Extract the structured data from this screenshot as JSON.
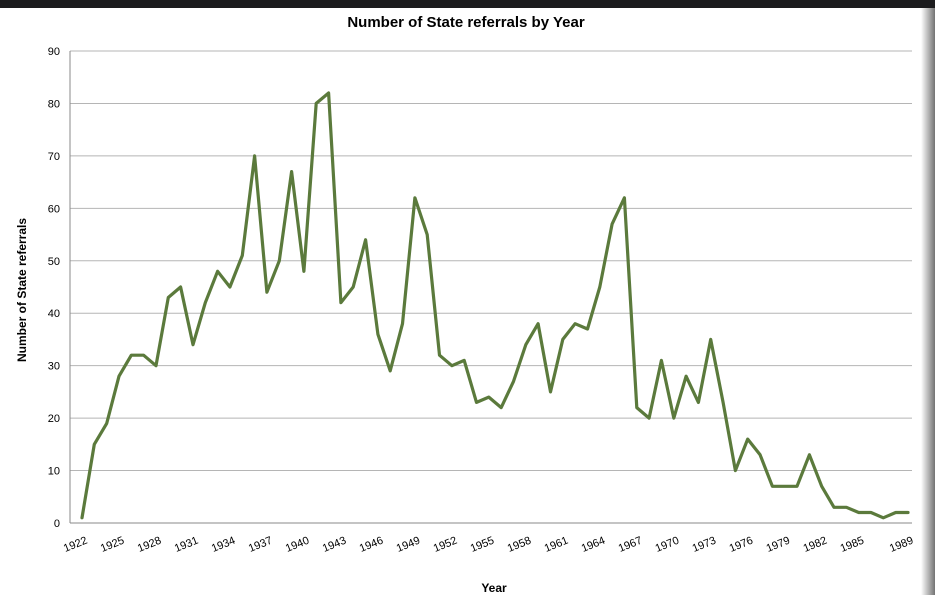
{
  "chart_data": {
    "type": "line",
    "title": "Number of State referrals by Year",
    "xlabel": "Year",
    "ylabel": "Number of State referrals",
    "ylim": [
      0,
      90
    ],
    "yticks": [
      0,
      10,
      20,
      30,
      40,
      50,
      60,
      70,
      80,
      90
    ],
    "xtick_labels": [
      "1922",
      "1925",
      "1928",
      "1931",
      "1934",
      "1937",
      "1940",
      "1943",
      "1946",
      "1949",
      "1952",
      "1955",
      "1958",
      "1961",
      "1964",
      "1967",
      "1970",
      "1973",
      "1976",
      "1979",
      "1982",
      "1985",
      "1989"
    ],
    "grid": true,
    "line_color": "#5b7a3c",
    "series": [
      {
        "x": [
          1922,
          1923,
          1924,
          1925,
          1926,
          1927,
          1928,
          1929,
          1930,
          1931,
          1932,
          1933,
          1934,
          1935,
          1936,
          1937,
          1938,
          1939,
          1940,
          1941,
          1942,
          1943,
          1944,
          1945,
          1946,
          1947,
          1948,
          1949,
          1950,
          1951,
          1952,
          1953,
          1954,
          1955,
          1956,
          1957,
          1958,
          1959,
          1960,
          1961,
          1962,
          1963,
          1964,
          1965,
          1966,
          1967,
          1968,
          1969,
          1970,
          1971,
          1972,
          1973,
          1974,
          1975,
          1976,
          1977,
          1978,
          1979,
          1980,
          1981,
          1982,
          1983,
          1984,
          1985,
          1986,
          1987,
          1988,
          1989
        ],
        "values": [
          1,
          15,
          19,
          28,
          32,
          32,
          30,
          43,
          45,
          34,
          42,
          48,
          45,
          51,
          70,
          44,
          50,
          67,
          48,
          80,
          82,
          42,
          45,
          54,
          36,
          29,
          38,
          62,
          55,
          32,
          30,
          31,
          23,
          24,
          22,
          27,
          34,
          38,
          25,
          35,
          38,
          37,
          45,
          57,
          62,
          22,
          20,
          31,
          20,
          28,
          23,
          35,
          23,
          10,
          16,
          13,
          7,
          7,
          7,
          13,
          7,
          3,
          3,
          2,
          2,
          1,
          2,
          2
        ]
      }
    ]
  }
}
